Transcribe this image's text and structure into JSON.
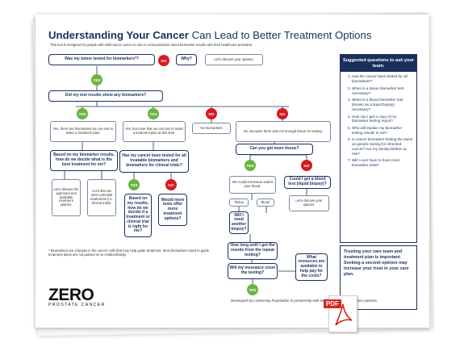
{
  "title": {
    "bold": "Understanding Your Cancer",
    "rest": " Can Lead to Better Treatment Options"
  },
  "subtitle": "This tool is designed for people with solid tumor cancer to use in communication about biomarker results with their healthcare providers.",
  "flow": {
    "q1": "Was my tumor tested for biomarkers*?",
    "why": "Why?",
    "discuss1": "Let's discuss your options.",
    "q2": "Did my test results show any biomarkers?",
    "ans_a": "Yes, there are biomarkers we can use to make a treatment plan.",
    "ans_b": "Yes, but none that we can use to make a treatment plan at this time.",
    "ans_c": "No biomarkers",
    "ans_d": "No, because there was not enough tissue for testing.",
    "q_best": "Based on my biomarker results, how do we decide what is the best treatment for me?",
    "discuss_approved": "Let's discuss the approved and available treatment options.",
    "discuss_other": "Let's discuss other potential treatments (i.e. clinical trials).",
    "q_tested": "Has my cancer been tested for all treatable biomarkers and biomarkers for clinical trials?",
    "q_trial": "Based on my results, how do we decide if a treatment or clinical trial is right for me?",
    "q_moretests": "Would more tests offer more treatment options?",
    "q_moretissue": "Can you get more tissue?",
    "ans_retest": "We could test tissue and/or your blood.",
    "tissue": "Tissue",
    "blood": "Blood",
    "q_biopsy": "Will I need another biopsy?",
    "q_bloodtest": "Could I get a blood test (liquid biopsy)?",
    "discuss2": "Let's discuss your options.",
    "q_howlong": "How long until I get the results from the repeat testing?",
    "q_insurance": "Will my insurance cover the testing?",
    "q_resources": "What resources are available to help pay for the costs?",
    "yes": "YES",
    "no": "NO"
  },
  "sidebar": {
    "heading": "Suggested questions to ask your team:",
    "items": [
      "Has the cancer been tested for all biomarkers?",
      "When is a tissue biomarker test necessary?",
      "When is a blood biomarker test (known as a liquid biopsy) necessary?",
      "How can I get a copy of my biomarker testing report?",
      "Who will explain my biomarker testing results to me?",
      "Is cancer biomarker testing the same as genetic testing for inherited cancer? Are my family/children at risk?",
      "Will I ever have to have more biomarker tests?"
    ]
  },
  "trust": "Trusting your care team and treatment plan is important. Seeking a second opinion may increase your trust in your care plan.",
  "footnote": "* Biomarkers are changes in the cancer cells that may help guide treatment. Most biomarkers used to guide treatment plans are not passed on to children/family.",
  "logo": {
    "main": "ZERO",
    "sub": "PROSTATE CANCER"
  },
  "credit": "Developed by LUNGevity Foundation in partnership with medical experts and cancer patients.",
  "pdf_badge": "PDF",
  "colors": {
    "navy": "#1b2f5d",
    "yes": "#6cb33f",
    "no": "#d71920",
    "pdf": "#d7261e"
  }
}
